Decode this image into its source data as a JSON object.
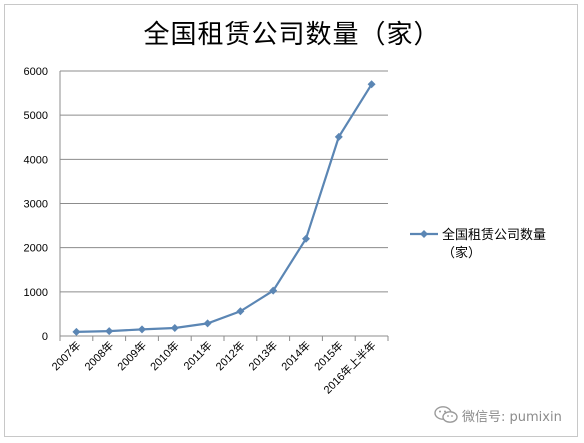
{
  "chart_data": {
    "type": "line",
    "title": "全国租赁公司数量（家）",
    "categories": [
      "2007年",
      "2008年",
      "2009年",
      "2010年",
      "2011年",
      "2012年",
      "2013年",
      "2014年",
      "2015年",
      "2016年上半年"
    ],
    "series": [
      {
        "name": "全国租赁公司数量（家）",
        "values": [
          93,
          110,
          150,
          182,
          286,
          560,
          1026,
          2202,
          4508,
          5700
        ],
        "color": "#5b86b4"
      }
    ],
    "ylim": [
      0,
      6000
    ],
    "yticks": [
      0,
      1000,
      2000,
      3000,
      4000,
      5000,
      6000
    ],
    "grid": true,
    "legend": "right",
    "legend_lines": [
      "全国租赁公司数量",
      "（家）"
    ]
  },
  "watermark": {
    "text": "微信号: pumixin",
    "icon": "wechat-icon"
  }
}
